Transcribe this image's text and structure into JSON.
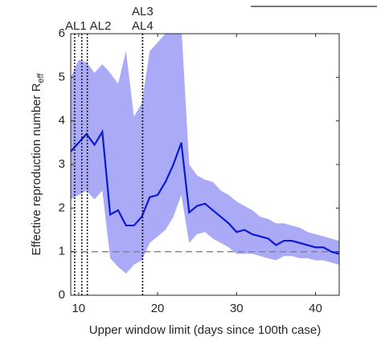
{
  "chart_data": {
    "type": "line",
    "xlabel": "Upper window limit (days since 100th case)",
    "ylabel": "Effective reproduction number R",
    "ylabel_sub": "eff",
    "x": [
      9,
      10,
      11,
      12,
      13,
      14,
      15,
      16,
      17,
      18,
      19,
      20,
      21,
      22,
      23,
      24,
      25,
      26,
      27,
      28,
      29,
      30,
      31,
      32,
      33,
      34,
      35,
      36,
      37,
      38,
      39,
      40,
      41,
      42,
      43
    ],
    "values": [
      3.3,
      3.5,
      3.7,
      3.45,
      3.75,
      1.85,
      1.95,
      1.6,
      1.6,
      1.8,
      2.25,
      2.3,
      2.6,
      3.0,
      3.5,
      1.9,
      2.05,
      2.1,
      1.95,
      1.8,
      1.65,
      1.45,
      1.5,
      1.4,
      1.35,
      1.3,
      1.15,
      1.25,
      1.25,
      1.2,
      1.15,
      1.1,
      1.1,
      1.0,
      0.95
    ],
    "upper": [
      5.0,
      5.4,
      5.35,
      5.1,
      5.3,
      5.1,
      4.85,
      5.6,
      4.1,
      4.4,
      5.6,
      5.8,
      6.0,
      6.2,
      6.2,
      3.0,
      2.75,
      2.65,
      2.6,
      2.4,
      2.3,
      2.15,
      2.05,
      1.95,
      1.8,
      1.75,
      1.65,
      1.65,
      1.6,
      1.55,
      1.45,
      1.4,
      1.35,
      1.3,
      1.25
    ],
    "lower": [
      2.2,
      2.3,
      2.4,
      2.2,
      2.4,
      0.85,
      0.65,
      0.5,
      0.7,
      0.8,
      1.2,
      1.35,
      1.5,
      1.8,
      2.3,
      1.2,
      1.4,
      1.45,
      1.3,
      1.2,
      1.1,
      0.95,
      0.95,
      0.95,
      0.9,
      0.85,
      0.8,
      0.9,
      0.9,
      0.85,
      0.85,
      0.8,
      0.8,
      0.75,
      0.7
    ],
    "color": "#0a1ad6",
    "band_color": "#aaaaf7",
    "reference_line": 1,
    "annotations": [
      {
        "label": null,
        "x": 9.5
      },
      {
        "label": "AL1",
        "x": 10.4
      },
      {
        "label": "AL2",
        "x": 11.1
      },
      {
        "label": "AL3",
        "x": 18.1
      },
      {
        "label": "AL4",
        "x": 18.1
      }
    ],
    "xlim": [
      9,
      43
    ],
    "xticks": [
      10,
      20,
      30,
      40
    ],
    "ylim": [
      0,
      6
    ],
    "yticks": [
      0,
      1,
      2,
      3,
      4,
      5,
      6
    ]
  }
}
